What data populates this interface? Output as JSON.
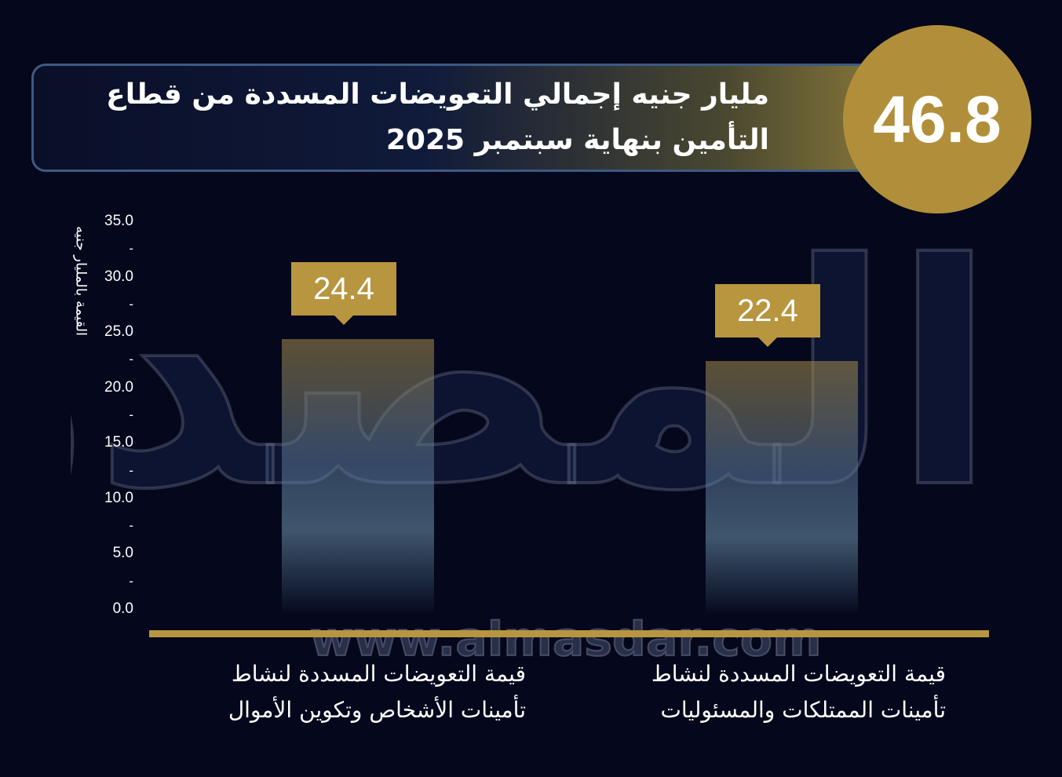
{
  "header": {
    "value": "46.8",
    "title": "مليار جنيه إجمالي التعويضات المسددة من قطاع التأمين بنهاية سبتمبر 2025"
  },
  "watermark": {
    "logo": "المصدر",
    "url": "www.almasdar.com"
  },
  "chart_data": {
    "type": "bar",
    "title": "",
    "xlabel": "",
    "ylabel": "القيمة بالمليار جنيه",
    "ylim": [
      0,
      35
    ],
    "yticks": [
      "0.0",
      "5.0",
      "10.0",
      "15.0",
      "20.0",
      "25.0",
      "30.0",
      "35.0"
    ],
    "minor_tick_mark": "-",
    "categories": [
      "قيمة التعويضات المسددة لنشاط تأمينات الأشخاص وتكوين الأموال",
      "قيمة التعويضات المسددة لنشاط تأمينات الممتلكات والمسئوليات"
    ],
    "values": [
      24.4,
      22.4
    ],
    "data_labels": [
      "24.4",
      "22.4"
    ],
    "colors": {
      "bar": "#b8953f",
      "axis": "#b8953f",
      "badge": "#b18f3a",
      "background": "#05071c"
    }
  }
}
